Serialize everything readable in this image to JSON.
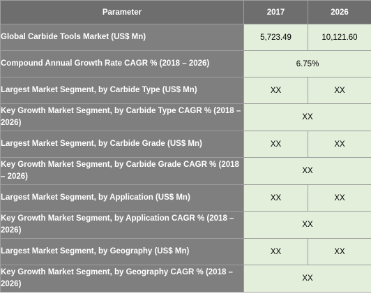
{
  "table": {
    "headers": [
      "Parameter",
      "2017",
      "2026"
    ],
    "rows": [
      {
        "parameter": "Global Carbide Tools Market (US$ Mn)",
        "v2017": "5,723.49",
        "v2026": "10,121.60"
      },
      {
        "parameter": "Compound Annual Growth Rate CAGR % (2018 – 2026)",
        "value": "6.75%"
      },
      {
        "parameter": "Largest Market Segment, by Carbide Type (US$ Mn)",
        "v2017": "XX",
        "v2026": "XX"
      },
      {
        "parameter": "Key Growth Market Segment, by Carbide Type CAGR % (2018 – 2026)",
        "value": "XX"
      },
      {
        "parameter": "Largest Market Segment, by Carbide Grade (US$ Mn)",
        "v2017": "XX",
        "v2026": "XX"
      },
      {
        "parameter": "Key Growth Market Segment, by Carbide Grade CAGR % (2018 – 2026)",
        "value": "XX"
      },
      {
        "parameter": "Largest Market Segment, by Application (US$ Mn)",
        "v2017": "XX",
        "v2026": "XX"
      },
      {
        "parameter": "Key Growth Market Segment, by Application CAGR % (2018 – 2026)",
        "value": "XX"
      },
      {
        "parameter": "Largest Market Segment, by Geography (US$ Mn)",
        "v2017": "XX",
        "v2026": "XX"
      },
      {
        "parameter": "Key Growth Market Segment, by Geography CAGR % (2018 – 2026)",
        "value": "XX"
      }
    ]
  }
}
